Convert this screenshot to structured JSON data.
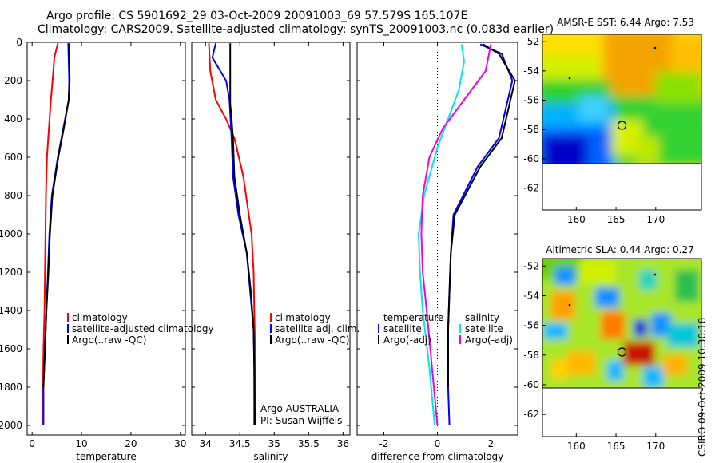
{
  "header": {
    "title_line1": "Argo profile: CS 5901692_29 03-Oct-2009 20091003_69 57.579S 165.107E",
    "title_line2": "Climatology: CARS2009. Satellite-adjusted climatology: synTS_20091003.nc (0.083d earlier)"
  },
  "footer": {
    "stamp": "CSIRO 09-Oct-2009 10:30:18"
  },
  "colors": {
    "climatology": "#ff0000",
    "satellite": "#0000ff",
    "argo": "#000000",
    "sat_salt": "#00e5ee",
    "argo_salt": "#ee00ee"
  },
  "chart_data": [
    {
      "type": "line",
      "xlabel": "temperature",
      "ylim": [
        2050,
        0
      ],
      "xlim": [
        -1,
        31
      ],
      "xticks": [
        0,
        10,
        20,
        30
      ],
      "yticks": [
        0,
        200,
        400,
        600,
        800,
        1000,
        1200,
        1400,
        1600,
        1800,
        2000
      ],
      "legend": [
        "climatology",
        "satellite-adjusted climatology",
        "Argo(..raw -QC)"
      ],
      "series": [
        {
          "name": "climatology",
          "color": "#ff0000",
          "x": [
            5.2,
            4.5,
            4.2,
            3.8,
            3.4,
            3.0,
            2.8,
            2.7,
            2.6,
            2.5,
            2.3,
            2.2,
            2.2
          ],
          "y": [
            5,
            80,
            180,
            300,
            450,
            600,
            800,
            1000,
            1200,
            1400,
            1600,
            1800,
            2000
          ]
        },
        {
          "name": "satellite-adjusted climatology",
          "color": "#0000ff",
          "x": [
            7.3,
            7.4,
            7.5,
            7.4,
            6.3,
            5.2,
            4.0,
            3.5,
            3.2,
            2.9,
            2.6,
            2.3,
            2.3
          ],
          "y": [
            5,
            100,
            200,
            300,
            450,
            600,
            800,
            1000,
            1200,
            1400,
            1600,
            1800,
            2000
          ]
        },
        {
          "name": "Argo(..raw -QC)",
          "color": "#000000",
          "x": [
            7.5,
            7.5,
            7.6,
            7.4,
            6.4,
            5.3,
            4.1,
            3.6,
            3.3,
            2.9,
            2.6,
            2.3
          ],
          "y": [
            5,
            100,
            200,
            300,
            450,
            600,
            800,
            1000,
            1200,
            1400,
            1600,
            1800
          ]
        }
      ]
    },
    {
      "type": "line",
      "xlabel": "salinity",
      "ylim": [
        2050,
        0
      ],
      "xlim": [
        33.8,
        36.1
      ],
      "xticks": [
        34,
        34.5,
        35,
        35.5,
        36
      ],
      "xtick_labels": [
        "34",
        "34.5",
        "35",
        "35.5",
        "36"
      ],
      "legend": [
        "climatology",
        "satellite adj. clim.",
        "Argo(..raw -QC)"
      ],
      "annotation": [
        "Argo AUSTRALIA",
        "PI: Susan Wijffels"
      ],
      "series": [
        {
          "name": "climatology",
          "color": "#ff0000",
          "x": [
            34.05,
            34.07,
            34.15,
            34.3,
            34.42,
            34.55,
            34.67,
            34.7,
            34.71,
            34.72,
            34.72,
            34.71
          ],
          "y": [
            5,
            150,
            300,
            400,
            500,
            700,
            1000,
            1200,
            1400,
            1600,
            1800,
            2000
          ]
        },
        {
          "name": "satellite adj. clim.",
          "color": "#0000ff",
          "x": [
            34.15,
            34.1,
            34.3,
            34.35,
            34.38,
            34.4,
            34.48,
            34.6,
            34.65,
            34.7,
            34.71,
            34.71
          ],
          "y": [
            5,
            80,
            200,
            300,
            500,
            700,
            900,
            1100,
            1300,
            1500,
            1700,
            2000
          ]
        },
        {
          "name": "Argo(..raw -QC)",
          "color": "#000000",
          "x": [
            34.36,
            34.36,
            34.36,
            34.38,
            34.4,
            34.42,
            34.5,
            34.6,
            34.66,
            34.7,
            34.71,
            34.72
          ],
          "y": [
            5,
            200,
            320,
            400,
            500,
            700,
            900,
            1100,
            1300,
            1500,
            1700,
            2000
          ]
        }
      ]
    },
    {
      "type": "line",
      "xlabel": "difference from climatology",
      "ylim": [
        2050,
        0
      ],
      "xlim": [
        -3,
        3
      ],
      "xticks": [
        -2,
        0,
        2
      ],
      "legend_temp_title": "temperature",
      "legend_salt_title": "salinity",
      "legend": [
        "satellite",
        "Argo(-adj)",
        "satellite",
        "Argo(-adj)"
      ],
      "series": [
        {
          "name": "satellite",
          "color": "#0000ff",
          "x": [
            1.6,
            2.4,
            2.8,
            2.3,
            1.5,
            0.6,
            0.5,
            0.45,
            0.4,
            0.4,
            0.45
          ],
          "y": [
            10,
            60,
            200,
            500,
            650,
            900,
            1100,
            1300,
            1500,
            1800,
            2000
          ]
        },
        {
          "name": "Argo(-adj)",
          "color": "#000000",
          "x": [
            1.7,
            2.3,
            2.9,
            2.4,
            1.6,
            0.65,
            0.5,
            0.45,
            0.4,
            0.4
          ],
          "y": [
            10,
            60,
            200,
            500,
            650,
            900,
            1100,
            1300,
            1500,
            1800
          ]
        },
        {
          "name": "satellite",
          "color": "#00e5ee",
          "x": [
            0.9,
            1.0,
            0.8,
            0.4,
            0.0,
            -0.5,
            -0.7,
            -0.65,
            -0.55,
            -0.3,
            -0.1
          ],
          "y": [
            10,
            100,
            250,
            400,
            550,
            800,
            1000,
            1200,
            1400,
            1700,
            2000
          ]
        },
        {
          "name": "Argo(-adj)",
          "color": "#ee00ee",
          "x": [
            2.0,
            1.8,
            1.0,
            0.2,
            -0.3,
            -0.55,
            -0.6,
            -0.55,
            -0.4,
            -0.2,
            0.0
          ],
          "y": [
            10,
            150,
            300,
            450,
            600,
            800,
            1000,
            1200,
            1400,
            1700,
            2000
          ]
        }
      ]
    },
    {
      "type": "heatmap",
      "title": "AMSR-E SST: 6.44 Argo: 7.53",
      "xticks": [
        160,
        165,
        170
      ],
      "yticks": [
        -52,
        -54,
        -56,
        -58,
        -60,
        -62
      ],
      "marker_position": [
        165.1,
        -57.6
      ]
    },
    {
      "type": "heatmap",
      "title": "Altimetric SLA: 0.44 Argo: 0.27",
      "xticks": [
        160,
        165,
        170
      ],
      "yticks": [
        -52,
        -54,
        -56,
        -58,
        -60,
        -62
      ],
      "marker_position": [
        165.1,
        -57.6
      ]
    }
  ]
}
